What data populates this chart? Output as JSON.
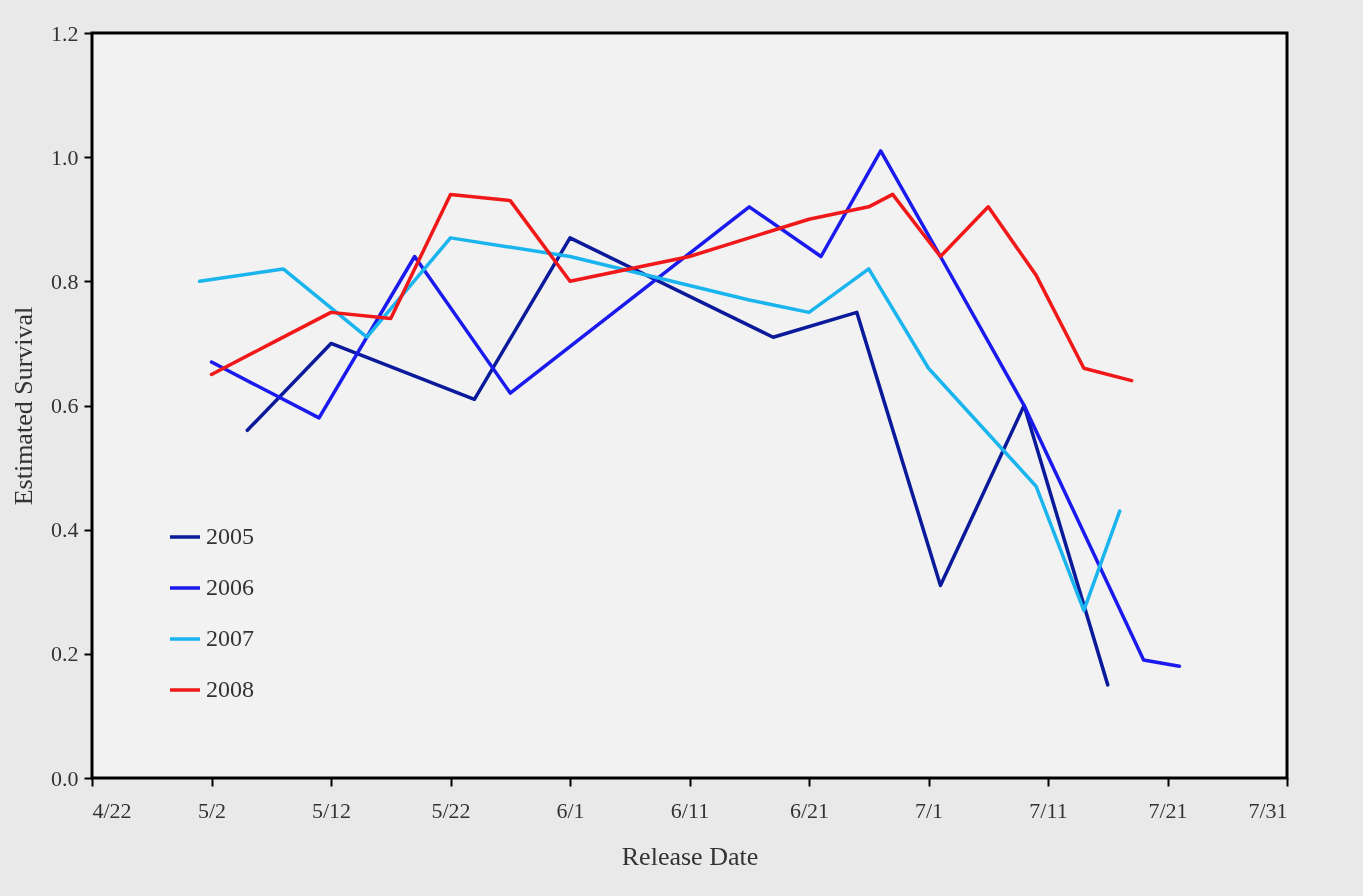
{
  "chart_data": {
    "type": "line",
    "xlabel": "Release Date",
    "ylabel": "Estimated Survival",
    "xlim": [
      "--04-22",
      "--07-31"
    ],
    "xticks": [
      {
        "value": "--04-22",
        "label": "4/22"
      },
      {
        "value": "--05-02",
        "label": "5/2"
      },
      {
        "value": "--05-12",
        "label": "5/12"
      },
      {
        "value": "--05-22",
        "label": "5/22"
      },
      {
        "value": "--06-01",
        "label": "6/1"
      },
      {
        "value": "--06-11",
        "label": "6/11"
      },
      {
        "value": "--06-21",
        "label": "6/21"
      },
      {
        "value": "--07-01",
        "label": "7/1"
      },
      {
        "value": "--07-11",
        "label": "7/11"
      },
      {
        "value": "--07-21",
        "label": "7/21"
      },
      {
        "value": "--07-31",
        "label": "7/31"
      }
    ],
    "ylim": [
      0,
      1.2
    ],
    "yticks": [
      {
        "value": 0,
        "label": "0.0"
      },
      0.2,
      0.4,
      0.6,
      0.8,
      {
        "value": 1,
        "label": "1.0"
      },
      1.2
    ],
    "grid": false,
    "legend": "bottom left",
    "series": [
      {
        "name": "2005",
        "color": "#0a1a9a",
        "x": [
          "--05-05",
          "--05-12",
          "--05-24",
          "--06-01",
          "--06-18",
          "--06-25",
          "--07-02",
          "--07-09",
          "--07-16"
        ],
        "values": [
          0.56,
          0.7,
          0.61,
          0.87,
          0.71,
          0.75,
          0.31,
          0.6,
          0.15
        ]
      },
      {
        "name": "2006",
        "color": "#1a1aee",
        "x": [
          "--05-02",
          "--05-11",
          "--05-19",
          "--05-27",
          "--06-16",
          "--06-22",
          "--06-27",
          "--07-02",
          "--07-09",
          "--07-19",
          "--07-22"
        ],
        "values": [
          0.67,
          0.58,
          0.84,
          0.62,
          0.92,
          0.84,
          1.01,
          0.84,
          0.6,
          0.19,
          0.18
        ]
      },
      {
        "name": "2007",
        "color": "#1ab4ee",
        "x": [
          "--05-01",
          "--05-08",
          "--05-15",
          "--05-22",
          "--06-01",
          "--06-16",
          "--06-21",
          "--06-26",
          "--07-01",
          "--07-10",
          "--07-14",
          "--07-17"
        ],
        "values": [
          0.8,
          0.82,
          0.71,
          0.87,
          0.84,
          0.77,
          0.75,
          0.82,
          0.66,
          0.47,
          0.27,
          0.43
        ]
      },
      {
        "name": "2008",
        "color": "#f01818",
        "x": [
          "--05-02",
          "--05-07",
          "--05-12",
          "--05-17",
          "--05-22",
          "--05-27",
          "--06-01",
          "--06-11",
          "--06-21",
          "--06-26",
          "--06-28",
          "--07-02",
          "--07-06",
          "--07-10",
          "--07-14",
          "--07-18"
        ],
        "values": [
          0.65,
          0.7,
          0.75,
          0.74,
          0.94,
          0.93,
          0.8,
          0.84,
          0.9,
          0.92,
          0.94,
          0.84,
          0.92,
          0.81,
          0.66,
          0.64
        ]
      }
    ]
  }
}
